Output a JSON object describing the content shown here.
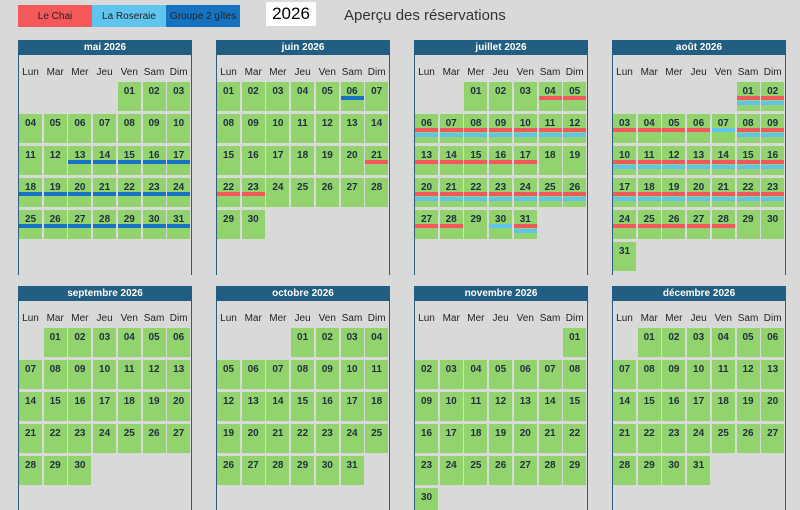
{
  "legend": [
    {
      "name": "Le Chai",
      "color": "#f4585a"
    },
    {
      "name": "La Roseraie",
      "color": "#5fc4ee"
    },
    {
      "name": "Groupe 2 gîtes",
      "color": "#1573c2"
    }
  ],
  "year": "2026",
  "title": "Aperçu des réservations",
  "weekdays": [
    "Lun",
    "Mar",
    "Mer",
    "Jeu",
    "Ven",
    "Sam",
    "Dim"
  ],
  "months": [
    {
      "name": "mai 2026",
      "weeks": [
        [
          null,
          null,
          null,
          null,
          "01",
          "02",
          "03"
        ],
        [
          "04",
          "05",
          "06",
          "07",
          "08",
          "09",
          "10"
        ],
        [
          "11",
          "12",
          "13",
          "14",
          "15",
          "16",
          "17"
        ],
        [
          "18",
          "19",
          "20",
          "21",
          "22",
          "23",
          "24"
        ],
        [
          "25",
          "26",
          "27",
          "28",
          "29",
          "30",
          "31"
        ]
      ],
      "bookings": [
        {
          "legend": 2,
          "days": [
            "13",
            "14",
            "15",
            "16",
            "17",
            "18",
            "19",
            "20",
            "21",
            "22",
            "23",
            "24",
            "25",
            "26",
            "27",
            "28",
            "29",
            "30",
            "31"
          ]
        }
      ]
    },
    {
      "name": "juin 2026",
      "weeks": [
        [
          "01",
          "02",
          "03",
          "04",
          "05",
          "06",
          "07"
        ],
        [
          "08",
          "09",
          "10",
          "11",
          "12",
          "13",
          "14"
        ],
        [
          "15",
          "16",
          "17",
          "18",
          "19",
          "20",
          "21"
        ],
        [
          "22",
          "23",
          "24",
          "25",
          "26",
          "27",
          "28"
        ],
        [
          "29",
          "30",
          null,
          null,
          null,
          null,
          null
        ]
      ],
      "bookings": [
        {
          "legend": 2,
          "days": [
            "06"
          ]
        },
        {
          "legend": 0,
          "days": [
            "21",
            "22",
            "23"
          ]
        }
      ]
    },
    {
      "name": "juillet 2026",
      "weeks": [
        [
          null,
          null,
          "01",
          "02",
          "03",
          "04",
          "05"
        ],
        [
          "06",
          "07",
          "08",
          "09",
          "10",
          "11",
          "12"
        ],
        [
          "13",
          "14",
          "15",
          "16",
          "17",
          "18",
          "19"
        ],
        [
          "20",
          "21",
          "22",
          "23",
          "24",
          "25",
          "26"
        ],
        [
          "27",
          "28",
          "29",
          "30",
          "31",
          null,
          null
        ]
      ],
      "bookings": [
        {
          "legend": 0,
          "days": [
            "04",
            "05",
            "06",
            "07",
            "08",
            "09",
            "10",
            "11",
            "12",
            "13",
            "14",
            "15",
            "16",
            "17",
            "20",
            "21",
            "22",
            "23",
            "24",
            "25",
            "26",
            "27",
            "28",
            "31"
          ]
        },
        {
          "legend": 1,
          "days": [
            "06",
            "07",
            "08",
            "09",
            "10",
            "11",
            "12",
            "20",
            "21",
            "22",
            "23",
            "24",
            "25",
            "26",
            "30",
            "31"
          ]
        }
      ]
    },
    {
      "name": "août 2026",
      "weeks": [
        [
          null,
          null,
          null,
          null,
          null,
          "01",
          "02"
        ],
        [
          "03",
          "04",
          "05",
          "06",
          "07",
          "08",
          "09"
        ],
        [
          "10",
          "11",
          "12",
          "13",
          "14",
          "15",
          "16"
        ],
        [
          "17",
          "18",
          "19",
          "20",
          "21",
          "22",
          "23"
        ],
        [
          "24",
          "25",
          "26",
          "27",
          "28",
          "29",
          "30"
        ],
        [
          "31",
          null,
          null,
          null,
          null,
          null,
          null
        ]
      ],
      "bookings": [
        {
          "legend": 0,
          "days": [
            "01",
            "02",
            "03",
            "04",
            "05",
            "06",
            "08",
            "09",
            "10",
            "11",
            "12",
            "13",
            "14",
            "15",
            "16",
            "17",
            "18",
            "19",
            "20",
            "21",
            "22",
            "23",
            "24",
            "25",
            "26",
            "27",
            "28"
          ]
        },
        {
          "legend": 1,
          "days": [
            "01",
            "02",
            "07",
            "08",
            "09",
            "10",
            "11",
            "12",
            "13",
            "14",
            "15",
            "16",
            "17",
            "18",
            "19",
            "20",
            "21",
            "22",
            "23"
          ]
        }
      ]
    },
    {
      "name": "septembre 2026",
      "weeks": [
        [
          null,
          "01",
          "02",
          "03",
          "04",
          "05",
          "06"
        ],
        [
          "07",
          "08",
          "09",
          "10",
          "11",
          "12",
          "13"
        ],
        [
          "14",
          "15",
          "16",
          "17",
          "18",
          "19",
          "20"
        ],
        [
          "21",
          "22",
          "23",
          "24",
          "25",
          "26",
          "27"
        ],
        [
          "28",
          "29",
          "30",
          null,
          null,
          null,
          null
        ]
      ],
      "bookings": []
    },
    {
      "name": "octobre 2026",
      "weeks": [
        [
          null,
          null,
          null,
          "01",
          "02",
          "03",
          "04"
        ],
        [
          "05",
          "06",
          "07",
          "08",
          "09",
          "10",
          "11"
        ],
        [
          "12",
          "13",
          "14",
          "15",
          "16",
          "17",
          "18"
        ],
        [
          "19",
          "20",
          "21",
          "22",
          "23",
          "24",
          "25"
        ],
        [
          "26",
          "27",
          "28",
          "29",
          "30",
          "31",
          null
        ]
      ],
      "bookings": []
    },
    {
      "name": "novembre 2026",
      "weeks": [
        [
          null,
          null,
          null,
          null,
          null,
          null,
          "01"
        ],
        [
          "02",
          "03",
          "04",
          "05",
          "06",
          "07",
          "08"
        ],
        [
          "09",
          "10",
          "11",
          "12",
          "13",
          "14",
          "15"
        ],
        [
          "16",
          "17",
          "18",
          "19",
          "20",
          "21",
          "22"
        ],
        [
          "23",
          "24",
          "25",
          "26",
          "27",
          "28",
          "29"
        ],
        [
          "30",
          null,
          null,
          null,
          null,
          null,
          null
        ]
      ],
      "bookings": []
    },
    {
      "name": "décembre 2026",
      "weeks": [
        [
          null,
          "01",
          "02",
          "03",
          "04",
          "05",
          "06"
        ],
        [
          "07",
          "08",
          "09",
          "10",
          "11",
          "12",
          "13"
        ],
        [
          "14",
          "15",
          "16",
          "17",
          "18",
          "19",
          "20"
        ],
        [
          "21",
          "22",
          "23",
          "24",
          "25",
          "26",
          "27"
        ],
        [
          "28",
          "29",
          "30",
          "31",
          null,
          null,
          null
        ]
      ],
      "bookings": []
    }
  ]
}
